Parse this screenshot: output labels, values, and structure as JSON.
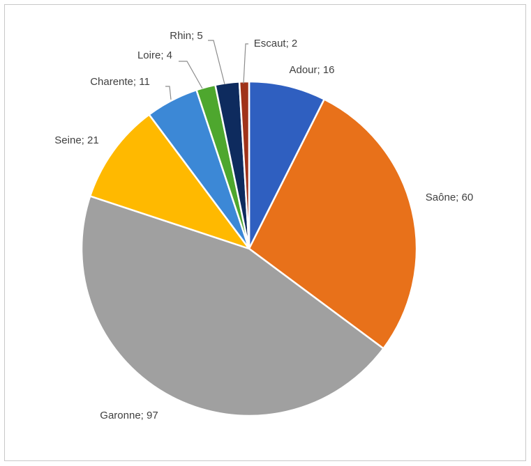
{
  "chart_data": {
    "type": "pie",
    "values": [
      16,
      60,
      97,
      21,
      11,
      4,
      5,
      2
    ],
    "value_labels": [
      "Adour; 16",
      "Saône; 60",
      "Garonne; 97",
      "Seine; 21",
      "Charente; 11",
      "Loire; 4",
      "Rhin; 5",
      "Escaut; 2"
    ],
    "colors": [
      "#2f5fc0",
      "#e8711a",
      "#a0a0a0",
      "#ffb900",
      "#3c88d6",
      "#4ea72e",
      "#0e2b5e",
      "#a0331a"
    ]
  }
}
